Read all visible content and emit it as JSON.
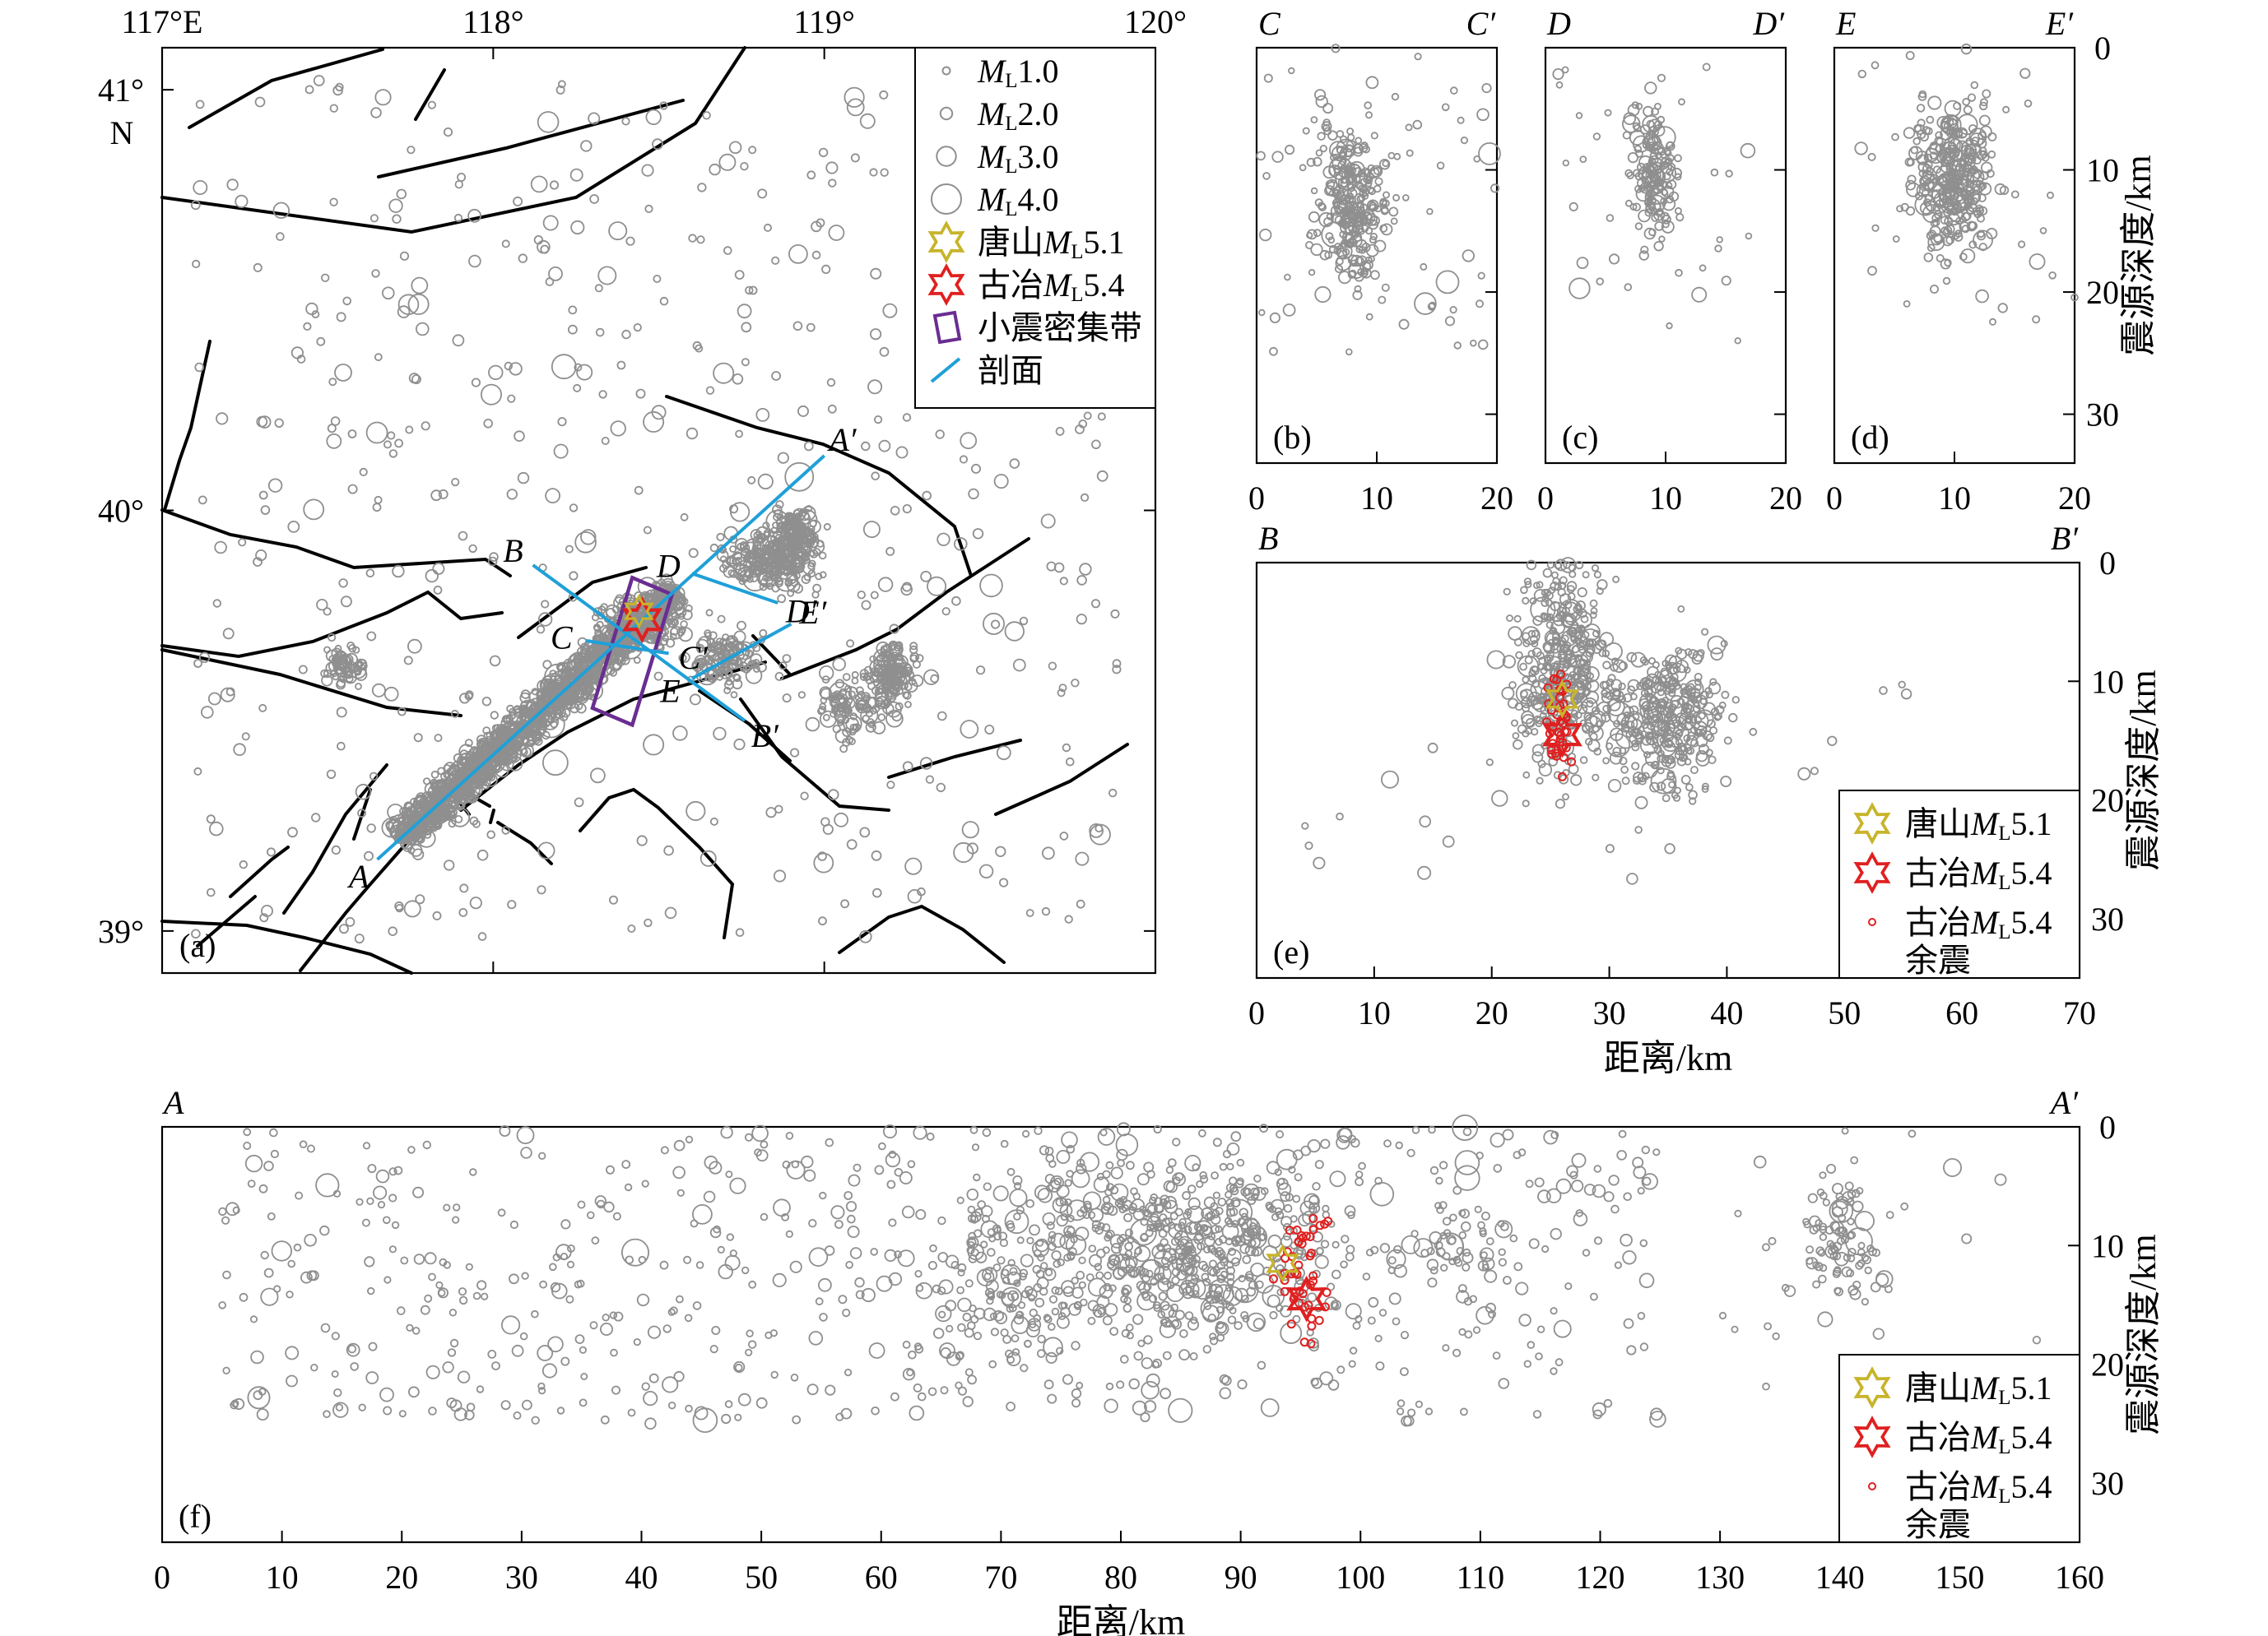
{
  "colors": {
    "event": "#8f8f8f",
    "fault": "#000000",
    "profile": "#1fa0d8",
    "tangshan": "#c8b42a",
    "guye": "#e02020",
    "aftershock": "#e02020",
    "dense_zone": "#6a2d91"
  },
  "chart_data": [
    {
      "id": "a",
      "type": "scatter",
      "panel_label": "(a)",
      "x_ticks": [
        "117°E",
        "118°",
        "119°",
        "120°"
      ],
      "x_tick_values": [
        117,
        118,
        119,
        120
      ],
      "y_ticks": [
        "41°",
        "40°",
        "39°"
      ],
      "y_tick_values": [
        41,
        40,
        39
      ],
      "y_unit_label": "N",
      "xlim": [
        117,
        120
      ],
      "ylim": [
        38.9,
        41.1
      ],
      "legend": {
        "placement": "top-right",
        "items": [
          {
            "label": "M",
            "sub": "L",
            "tail": "1.0",
            "marker": "circle",
            "magnitude": 1.0
          },
          {
            "label": "M",
            "sub": "L",
            "tail": "2.0",
            "marker": "circle",
            "magnitude": 2.0
          },
          {
            "label": "M",
            "sub": "L",
            "tail": "3.0",
            "marker": "circle",
            "magnitude": 3.0
          },
          {
            "label": "M",
            "sub": "L",
            "tail": "4.0",
            "marker": "circle",
            "magnitude": 4.0
          },
          {
            "label": "唐山",
            "italic": "M",
            "sub": "L",
            "tail": "5.1",
            "marker": "star-tangshan"
          },
          {
            "label": "古冶",
            "italic": "M",
            "sub": "L",
            "tail": "5.4",
            "marker": "star-guye"
          },
          {
            "label": "小震密集带",
            "marker": "box"
          },
          {
            "label": "剖面",
            "marker": "line"
          }
        ]
      },
      "profiles": [
        {
          "start": "A",
          "end": "A′",
          "from": [
            117.65,
            39.17
          ],
          "to": [
            119.0,
            40.13
          ]
        },
        {
          "start": "B",
          "end": "B′",
          "from": [
            118.12,
            39.87
          ],
          "to": [
            118.76,
            39.5
          ]
        },
        {
          "start": "C",
          "end": "C′",
          "from": [
            118.28,
            39.69
          ],
          "to": [
            118.53,
            39.66
          ]
        },
        {
          "start": "D",
          "end": "D′",
          "from": [
            118.6,
            39.85
          ],
          "to": [
            118.86,
            39.78
          ]
        },
        {
          "start": "E",
          "end": "E′",
          "from": [
            118.6,
            39.6
          ],
          "to": [
            118.9,
            39.73
          ]
        }
      ],
      "dense_zone": {
        "corners": [
          [
            118.3,
            39.53
          ],
          [
            118.42,
            39.84
          ],
          [
            118.54,
            39.8
          ],
          [
            118.42,
            39.49
          ]
        ]
      },
      "tangshan": {
        "lon": 118.44,
        "lat": 39.76
      },
      "guye": {
        "lon": 118.45,
        "lat": 39.74
      }
    },
    {
      "id": "b",
      "type": "scatter",
      "panel_label": "(b)",
      "start": "C",
      "end": "C′",
      "x_ticks": [
        "0",
        "10",
        "20"
      ],
      "x_tick_values": [
        0,
        10,
        20
      ],
      "xlim": [
        0,
        20
      ],
      "ylim": [
        0,
        34
      ],
      "events_center": [
        8,
        13
      ]
    },
    {
      "id": "c",
      "type": "scatter",
      "panel_label": "(c)",
      "start": "D",
      "end": "D′",
      "x_ticks": [
        "0",
        "10",
        "20"
      ],
      "x_tick_values": [
        0,
        10,
        20
      ],
      "xlim": [
        0,
        20
      ],
      "ylim": [
        0,
        34
      ],
      "events_center": [
        9,
        10
      ]
    },
    {
      "id": "d",
      "type": "scatter",
      "panel_label": "(d)",
      "start": "E",
      "end": "E′",
      "x_ticks": [
        "0",
        "10",
        "20"
      ],
      "x_tick_values": [
        0,
        10,
        20
      ],
      "xlim": [
        0,
        20
      ],
      "y_ticks": [
        "0",
        "10",
        "20",
        "30"
      ],
      "y_tick_values": [
        0,
        10,
        20,
        30
      ],
      "ylim": [
        0,
        34
      ],
      "ylabel": "震源深度/km",
      "events_center": [
        10,
        11
      ]
    },
    {
      "id": "e",
      "type": "scatter",
      "panel_label": "(e)",
      "start": "B",
      "end": "B′",
      "x_ticks": [
        "0",
        "10",
        "20",
        "30",
        "40",
        "50",
        "60",
        "70"
      ],
      "x_tick_values": [
        0,
        10,
        20,
        30,
        40,
        50,
        60,
        70
      ],
      "xlim": [
        0,
        70
      ],
      "y_ticks": [
        "0",
        "10",
        "20",
        "30"
      ],
      "y_tick_values": [
        0,
        10,
        20,
        30
      ],
      "ylim": [
        0,
        35
      ],
      "xlabel": "距离/km",
      "ylabel": "震源深度/km",
      "tangshan": {
        "x": 26,
        "depth": 11.5
      },
      "guye": {
        "x": 26,
        "depth": 14.5
      },
      "legend": {
        "placement": "bottom-right",
        "items": [
          {
            "label": "唐山",
            "italic": "M",
            "sub": "L",
            "tail": "5.1",
            "marker": "star-tangshan"
          },
          {
            "label": "古冶",
            "italic": "M",
            "sub": "L",
            "tail": "5.4",
            "marker": "star-guye"
          },
          {
            "label": "古冶",
            "italic": "M",
            "sub": "L",
            "tail": "5.4",
            "line2": "余震",
            "marker": "dot-aftershock"
          }
        ]
      }
    },
    {
      "id": "f",
      "type": "scatter",
      "panel_label": "(f)",
      "start": "A",
      "end": "A′",
      "x_ticks": [
        "0",
        "10",
        "20",
        "30",
        "40",
        "50",
        "60",
        "70",
        "80",
        "90",
        "100",
        "110",
        "120",
        "130",
        "140",
        "150",
        "160"
      ],
      "x_tick_values": [
        0,
        10,
        20,
        30,
        40,
        50,
        60,
        70,
        80,
        90,
        100,
        110,
        120,
        130,
        140,
        150,
        160
      ],
      "xlim": [
        0,
        160
      ],
      "y_ticks": [
        "0",
        "10",
        "20",
        "30"
      ],
      "y_tick_values": [
        0,
        10,
        20,
        30
      ],
      "ylim": [
        0,
        35
      ],
      "xlabel": "距离/km",
      "ylabel": "震源深度/km",
      "tangshan": {
        "x": 93.5,
        "depth": 11.5
      },
      "guye": {
        "x": 95.5,
        "depth": 14.5
      },
      "legend": {
        "placement": "bottom-right",
        "items": [
          {
            "label": "唐山",
            "italic": "M",
            "sub": "L",
            "tail": "5.1",
            "marker": "star-tangshan"
          },
          {
            "label": "古冶",
            "italic": "M",
            "sub": "L",
            "tail": "5.4",
            "marker": "star-guye"
          },
          {
            "label": "古冶",
            "italic": "M",
            "sub": "L",
            "tail": "5.4",
            "line2": "余震",
            "marker": "dot-aftershock"
          }
        ]
      }
    }
  ]
}
